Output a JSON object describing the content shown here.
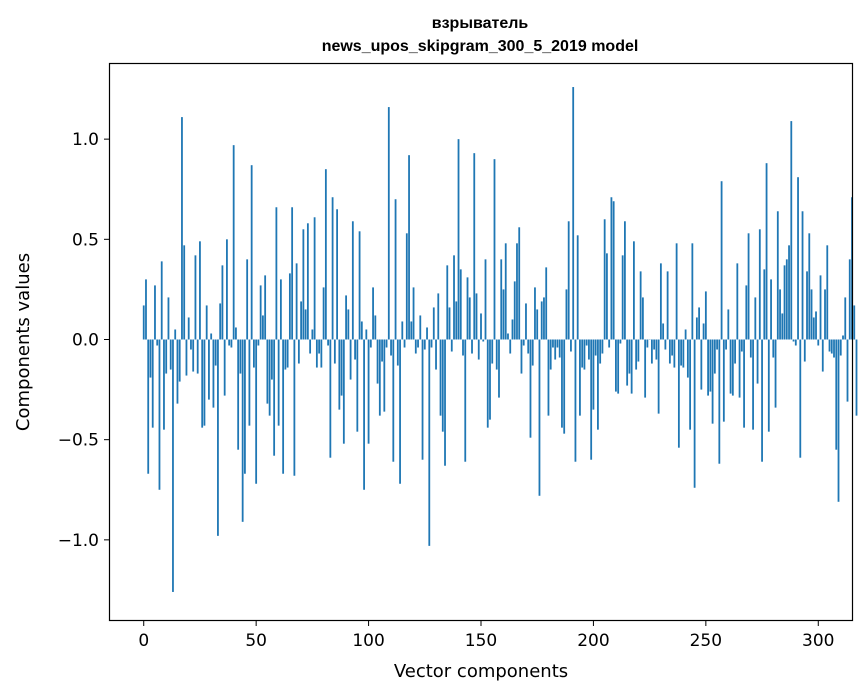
{
  "chart_data": {
    "type": "bar",
    "title": "взрыватель",
    "subtitle": "news_upos_skipgram_300_5_2019 model",
    "xlabel": "Vector components",
    "ylabel": "Components values",
    "xlim": [
      -15,
      315
    ],
    "ylim": [
      -1.4,
      1.38
    ],
    "x_ticks": [
      0,
      50,
      100,
      150,
      200,
      250,
      300
    ],
    "x_tick_labels": [
      "0",
      "50",
      "100",
      "150",
      "200",
      "250",
      "300"
    ],
    "y_ticks": [
      -1.0,
      -0.5,
      0.0,
      0.5,
      1.0
    ],
    "y_tick_labels": [
      "−1.0",
      "−0.5",
      "0.0",
      "0.5",
      "1.0"
    ],
    "grid": false,
    "bar_color": "#1f77b4",
    "categories_start": 0,
    "values": [
      0.17,
      0.3,
      -0.67,
      -0.19,
      -0.44,
      0.27,
      -0.03,
      -0.75,
      0.39,
      -0.45,
      -0.17,
      0.21,
      -0.15,
      -1.26,
      0.05,
      -0.32,
      -0.21,
      1.11,
      0.47,
      -0.18,
      0.11,
      -0.05,
      -0.16,
      0.42,
      -0.17,
      0.49,
      -0.44,
      -0.43,
      0.17,
      -0.3,
      0.03,
      -0.34,
      -0.13,
      -0.98,
      0.18,
      0.37,
      -0.28,
      0.5,
      -0.03,
      -0.04,
      0.97,
      0.06,
      -0.55,
      -0.17,
      -0.91,
      -0.67,
      0.4,
      -0.43,
      0.87,
      -0.14,
      -0.72,
      -0.03,
      0.27,
      0.12,
      0.32,
      -0.32,
      -0.38,
      -0.2,
      -0.58,
      0.66,
      -0.43,
      0.3,
      -0.67,
      -0.15,
      -0.14,
      0.33,
      0.66,
      -0.68,
      0.38,
      -0.12,
      0.19,
      0.55,
      0.15,
      0.58,
      -0.07,
      0.05,
      0.61,
      -0.14,
      -0.07,
      -0.14,
      0.26,
      0.85,
      -0.03,
      -0.59,
      0.71,
      -0.12,
      0.65,
      -0.35,
      -0.28,
      -0.52,
      0.22,
      0.15,
      -0.2,
      0.59,
      -0.1,
      -0.46,
      0.54,
      0.09,
      -0.75,
      0.05,
      -0.52,
      -0.04,
      0.26,
      0.12,
      -0.22,
      -0.38,
      -0.11,
      -0.36,
      -0.04,
      1.16,
      -0.08,
      -0.61,
      0.7,
      -0.13,
      -0.72,
      0.09,
      -0.04,
      0.53,
      0.92,
      0.09,
      0.26,
      -0.07,
      -0.04,
      0.12,
      -0.6,
      -0.05,
      0.06,
      -1.03,
      -0.04,
      0.16,
      -0.15,
      0.23,
      -0.38,
      -0.46,
      -0.63,
      0.37,
      0.16,
      -0.06,
      0.42,
      0.19,
      1.0,
      0.35,
      -0.08,
      -0.61,
      0.31,
      0.21,
      -0.07,
      0.93,
      0.23,
      -0.1,
      0.13,
      -0.01,
      0.4,
      -0.44,
      -0.4,
      -0.12,
      0.9,
      -0.15,
      -0.29,
      0.4,
      0.25,
      0.48,
      0.03,
      -0.07,
      0.1,
      0.29,
      0.48,
      0.56,
      -0.17,
      -0.03,
      0.18,
      -0.07,
      -0.49,
      -0.13,
      0.26,
      0.15,
      -0.78,
      0.19,
      0.21,
      0.36,
      -0.38,
      -0.15,
      -0.04,
      -0.1,
      -0.04,
      -0.09,
      -0.44,
      -0.47,
      0.25,
      0.59,
      -0.06,
      1.26,
      -0.61,
      0.52,
      -0.38,
      -0.14,
      -0.15,
      -0.03,
      -0.1,
      -0.6,
      -0.35,
      -0.08,
      -0.45,
      -0.12,
      -0.07,
      0.6,
      0.43,
      -0.04,
      0.71,
      0.69,
      -0.26,
      -0.27,
      -0.02,
      0.42,
      0.59,
      -0.23,
      -0.17,
      -0.27,
      0.49,
      -0.15,
      -0.11,
      0.34,
      0.21,
      -0.29,
      -0.04,
      0.0,
      -0.12,
      -0.05,
      -0.1,
      -0.37,
      0.38,
      0.08,
      -0.05,
      0.34,
      -0.12,
      -0.08,
      -0.14,
      0.48,
      -0.54,
      -0.13,
      -0.14,
      0.05,
      -0.19,
      -0.45,
      0.48,
      -0.74,
      0.11,
      0.16,
      -0.25,
      0.08,
      0.24,
      -0.28,
      -0.26,
      -0.42,
      -0.17,
      -0.05,
      -0.62,
      0.79,
      -0.41,
      -0.05,
      0.15,
      -0.27,
      -0.28,
      -0.12,
      0.38,
      -0.29,
      -0.06,
      -0.44,
      0.27,
      0.53,
      -0.09,
      -0.45,
      0.21,
      -0.22,
      0.55,
      -0.61,
      0.35,
      0.88,
      -0.46,
      0.3,
      -0.09,
      -0.34,
      0.64,
      0.25,
      0.13,
      0.37,
      0.4,
      0.47,
      1.09,
      -0.01,
      -0.03,
      0.81,
      -0.59,
      0.64,
      -0.11,
      0.34,
      0.53,
      0.25,
      0.11,
      0.14,
      -0.03,
      0.32,
      -0.16,
      0.25,
      0.47,
      -0.06,
      -0.07,
      -0.09,
      -0.55,
      -0.81,
      -0.08,
      0.02,
      0.21,
      -0.31,
      0.4,
      0.71,
      0.17,
      -0.38
    ]
  }
}
